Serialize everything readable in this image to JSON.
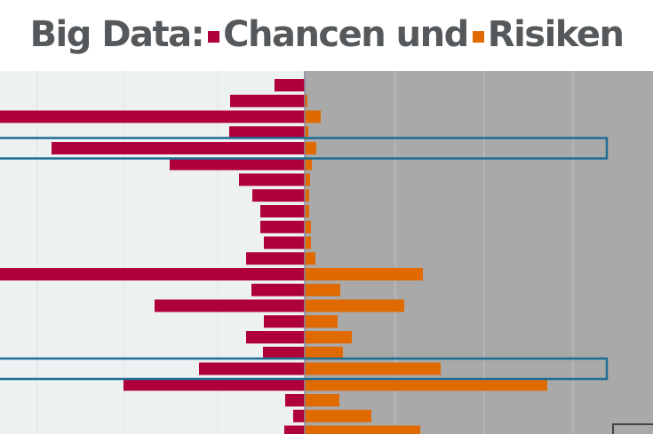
{
  "chart_data": {
    "type": "bar",
    "orientation": "horizontal-diverging",
    "title_parts": {
      "prefix": "Big Data:",
      "left_label": "Chancen und",
      "right_label": "Risiken"
    },
    "series": [
      {
        "name": "Chancen",
        "color": "#b0003a",
        "direction": "left",
        "values": [
          34,
          84,
          350,
          85,
          285,
          152,
          74,
          59,
          50,
          50,
          46,
          66,
          350,
          60,
          169,
          46,
          66,
          47,
          119,
          204,
          22,
          13,
          23
        ]
      },
      {
        "name": "Risiken",
        "color": "#e06a00",
        "direction": "right",
        "values": [
          0,
          3,
          18,
          4,
          13,
          8,
          6,
          5,
          5,
          7,
          7,
          12,
          133,
          40,
          112,
          37,
          53,
          43,
          153,
          273,
          39,
          75,
          130
        ]
      }
    ],
    "highlighted_rows": [
      4,
      18
    ],
    "highlight_color": "#1e6e94",
    "xlim": [
      -350,
      350
    ],
    "grid": false,
    "legend": "title"
  }
}
